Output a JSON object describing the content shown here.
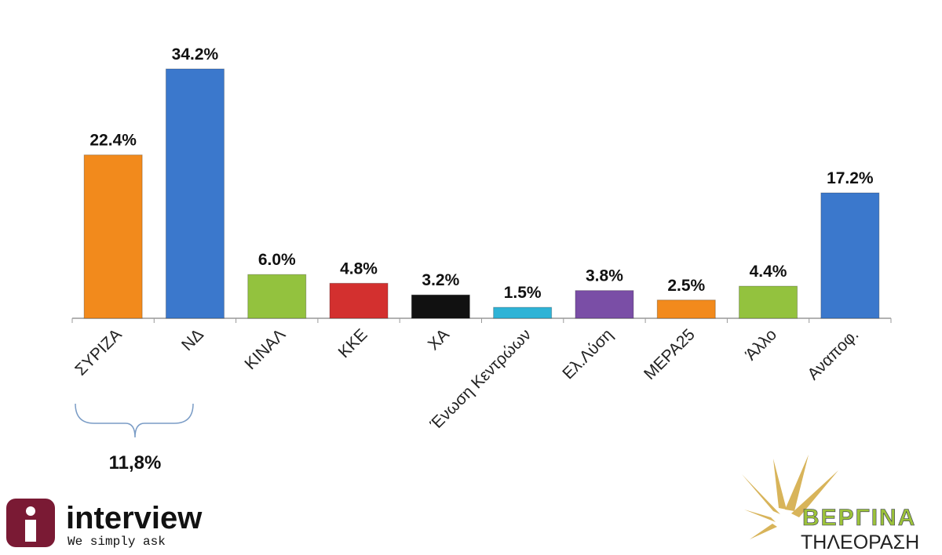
{
  "chart_data": {
    "type": "bar",
    "categories": [
      "ΣΥΡΙΖΑ",
      "ΝΔ",
      "ΚΙΝΑΛ",
      "ΚΚΕ",
      "ΧΑ",
      "Ένωση Κεντρώων",
      "Ελ.Λύση",
      "ΜΕΡΑ25",
      "Άλλο",
      "Αναποφ."
    ],
    "values": [
      22.4,
      34.2,
      6.0,
      4.8,
      3.2,
      1.5,
      3.8,
      2.5,
      4.4,
      17.2
    ],
    "value_labels": [
      "22.4%",
      "34.2%",
      "6.0%",
      "4.8%",
      "3.2%",
      "1.5%",
      "3.8%",
      "2.5%",
      "4.4%",
      "17.2%"
    ],
    "colors": [
      "#f28a1c",
      "#3b78cc",
      "#93c23e",
      "#d3302f",
      "#111111",
      "#2fb3d6",
      "#7a4ea6",
      "#f28a1c",
      "#93c23e",
      "#3b78cc"
    ],
    "annotation": "11,8%"
  },
  "logos": {
    "left_name": "interview",
    "left_tagline": "We simply ask",
    "right_name": "ΒΕΡΓΙΝΑ",
    "right_sub": "ΤΗΛΕΟΡΑΣΗ"
  }
}
